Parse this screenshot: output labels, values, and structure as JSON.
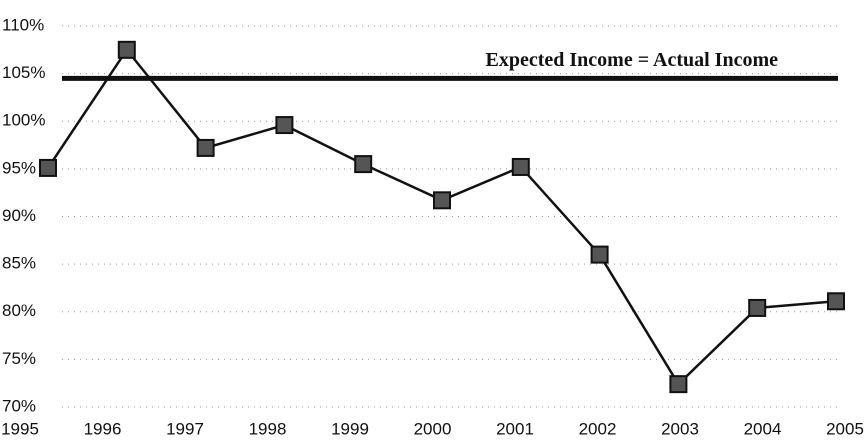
{
  "chart_data": {
    "type": "line",
    "categories": [
      "1995",
      "1996",
      "1997",
      "1998",
      "1999",
      "2000",
      "2001",
      "2002",
      "2003",
      "2004",
      "2005"
    ],
    "values": [
      95.1,
      107.5,
      97.2,
      99.6,
      95.5,
      91.7,
      95.2,
      86.0,
      72.4,
      80.4,
      81.1
    ],
    "color": "#111111",
    "marker_color": "#555555",
    "ylim": [
      70,
      110
    ],
    "yticks": [
      {
        "value": 70,
        "label": "70%"
      },
      {
        "value": 75,
        "label": "75%"
      },
      {
        "value": 80,
        "label": "80%"
      },
      {
        "value": 85,
        "label": "85%"
      },
      {
        "value": 90,
        "label": "90%"
      },
      {
        "value": 95,
        "label": "95%"
      },
      {
        "value": 100,
        "label": "100%"
      },
      {
        "value": 105,
        "label": "105%"
      },
      {
        "value": 110,
        "label": "110%"
      }
    ],
    "grid": true,
    "reference_line": {
      "value": 104.5,
      "label": "Expected Income = Actual Income"
    }
  }
}
